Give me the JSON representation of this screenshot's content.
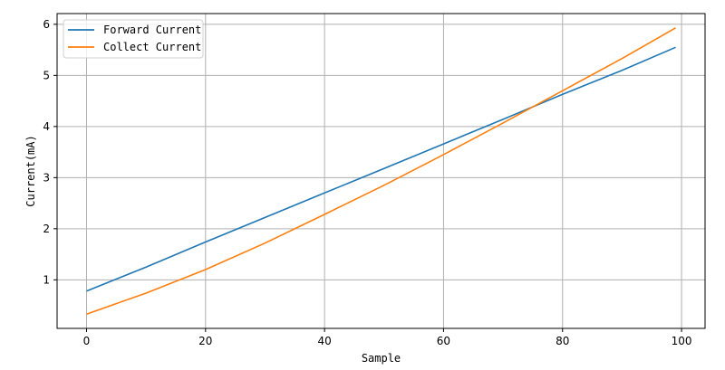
{
  "chart_data": {
    "type": "line",
    "title": "",
    "xlabel": "Sample",
    "ylabel": "Current(mA)",
    "xlim": [
      -4.95,
      103.95
    ],
    "ylim": [
      0.05,
      6.21
    ],
    "xticks": [
      0,
      20,
      40,
      60,
      80,
      100
    ],
    "yticks": [
      1,
      2,
      3,
      4,
      5,
      6
    ],
    "grid": true,
    "legend_position": "top-left",
    "x": [
      0,
      10,
      20,
      30,
      40,
      50,
      60,
      70,
      80,
      90,
      99
    ],
    "series": [
      {
        "name": "Forward Current",
        "color": "#1f77b4",
        "values": [
          0.78,
          1.25,
          1.74,
          2.22,
          2.7,
          3.18,
          3.66,
          4.14,
          4.63,
          5.1,
          5.55
        ]
      },
      {
        "name": "Collect Current",
        "color": "#ff7f0e",
        "values": [
          0.33,
          0.74,
          1.2,
          1.72,
          2.28,
          2.85,
          3.45,
          4.07,
          4.7,
          5.33,
          5.93
        ]
      }
    ]
  }
}
